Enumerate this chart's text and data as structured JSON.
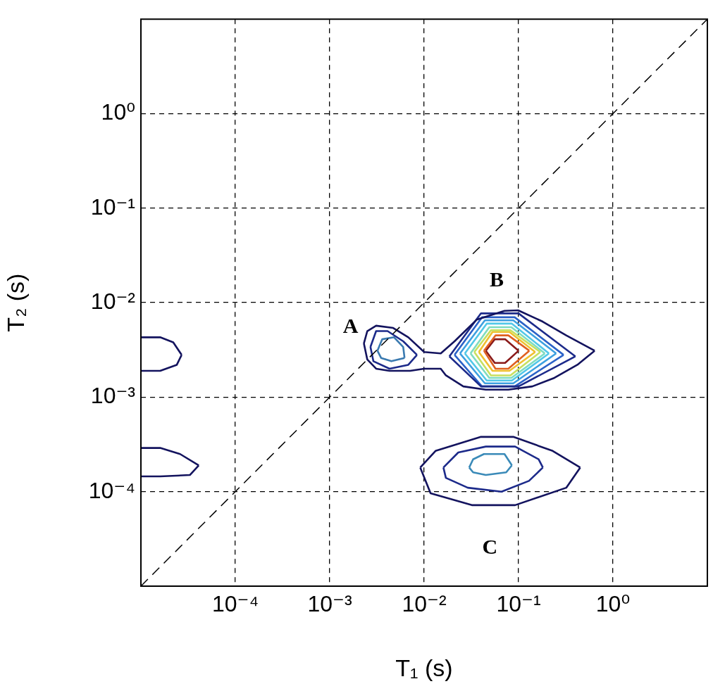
{
  "chart_data": {
    "type": "line",
    "xlabel": "T₁ (s)",
    "ylabel": "T₂ (s)",
    "log": "xy",
    "grid": true,
    "legend": false,
    "marker": "none",
    "xlim": [
      1e-05,
      10
    ],
    "ylim": [
      1e-05,
      10
    ],
    "xticks": [
      {
        "value": 0.0001,
        "label": "10⁻⁴"
      },
      {
        "value": 0.001,
        "label": "10⁻³"
      },
      {
        "value": 0.01,
        "label": "10⁻²"
      },
      {
        "value": 0.1,
        "label": "10⁻¹"
      },
      {
        "value": 1,
        "label": "10⁰"
      }
    ],
    "yticks": [
      {
        "value": 0.0001,
        "label": "10⁻⁴"
      },
      {
        "value": 0.001,
        "label": "10⁻³"
      },
      {
        "value": 0.01,
        "label": "10⁻²"
      },
      {
        "value": 0.1,
        "label": "10⁻¹"
      },
      {
        "value": 1,
        "label": "10⁰"
      }
    ],
    "annotations": [
      "A",
      "B",
      "C"
    ],
    "series": [
      {
        "color": "#000000",
        "line_style": "dashed",
        "x": [
          1e-05,
          10
        ],
        "values": [
          1e-05,
          10
        ]
      },
      {
        "color": "#13135e",
        "x": [
          0.0023,
          0.0025,
          0.0031,
          0.0047,
          0.0068,
          0.01,
          0.015,
          0.021,
          0.036,
          0.071,
          0.099,
          0.18,
          0.32,
          0.64
        ],
        "values": [
          0.0037,
          0.005,
          0.0057,
          0.0054,
          0.0043,
          0.003,
          0.0029,
          0.0039,
          0.0066,
          0.0082,
          0.0083,
          0.0063,
          0.0045,
          0.0031
        ]
      },
      {
        "color": "#13135e",
        "x": [
          0.0023,
          0.0025,
          0.0031,
          0.0043,
          0.0071,
          0.01,
          0.015,
          0.017,
          0.026,
          0.045,
          0.078,
          0.14,
          0.24,
          0.42,
          0.64
        ],
        "values": [
          0.0037,
          0.0025,
          0.002,
          0.0019,
          0.0019,
          0.002,
          0.002,
          0.0017,
          0.0013,
          0.0012,
          0.0012,
          0.0013,
          0.0016,
          0.0022,
          0.0031
        ]
      },
      {
        "color": "#1c2a8a",
        "x": [
          0.0185,
          0.04,
          0.1,
          0.4
        ],
        "values": [
          0.0027,
          0.0077,
          0.0077,
          0.0027
        ]
      },
      {
        "color": "#1c2a8a",
        "x": [
          0.0185,
          0.04,
          0.1,
          0.4
        ],
        "values": [
          0.0027,
          0.0013,
          0.0013,
          0.0027
        ]
      },
      {
        "color": "#2b62c8",
        "x": [
          0.021,
          0.041,
          0.091,
          0.3
        ],
        "values": [
          0.0028,
          0.007,
          0.007,
          0.0028
        ]
      },
      {
        "color": "#2b62c8",
        "x": [
          0.021,
          0.041,
          0.091,
          0.3
        ],
        "values": [
          0.0028,
          0.0013,
          0.0013,
          0.0028
        ]
      },
      {
        "color": "#3da0e0",
        "x": [
          0.024,
          0.044,
          0.088,
          0.25
        ],
        "values": [
          0.0029,
          0.0065,
          0.0065,
          0.0029
        ]
      },
      {
        "color": "#3da0e0",
        "x": [
          0.024,
          0.044,
          0.088,
          0.25
        ],
        "values": [
          0.0029,
          0.0014,
          0.0014,
          0.0029
        ]
      },
      {
        "color": "#52c8e8",
        "x": [
          0.027,
          0.046,
          0.085,
          0.21
        ],
        "values": [
          0.0029,
          0.006,
          0.006,
          0.0029
        ]
      },
      {
        "color": "#52c8e8",
        "x": [
          0.027,
          0.046,
          0.085,
          0.21
        ],
        "values": [
          0.0029,
          0.0015,
          0.0015,
          0.0029
        ]
      },
      {
        "color": "#7fdcc0",
        "x": [
          0.031,
          0.049,
          0.084,
          0.19
        ],
        "values": [
          0.0029,
          0.0055,
          0.0055,
          0.0029
        ]
      },
      {
        "color": "#7fdcc0",
        "x": [
          0.031,
          0.049,
          0.084,
          0.19
        ],
        "values": [
          0.0029,
          0.0016,
          0.0016,
          0.0029
        ]
      },
      {
        "color": "#c8e060",
        "x": [
          0.034,
          0.051,
          0.082,
          0.17
        ],
        "values": [
          0.003,
          0.0051,
          0.0051,
          0.003
        ]
      },
      {
        "color": "#c8e060",
        "x": [
          0.034,
          0.051,
          0.082,
          0.17
        ],
        "values": [
          0.003,
          0.0017,
          0.0017,
          0.003
        ]
      },
      {
        "color": "#f0c030",
        "x": [
          0.038,
          0.053,
          0.08,
          0.15
        ],
        "values": [
          0.003,
          0.0049,
          0.0049,
          0.003
        ]
      },
      {
        "color": "#f0c030",
        "x": [
          0.038,
          0.053,
          0.08,
          0.15
        ],
        "values": [
          0.003,
          0.0019,
          0.0019,
          0.003
        ]
      },
      {
        "color": "#e06020",
        "x": [
          0.043,
          0.057,
          0.078,
          0.13
        ],
        "values": [
          0.0031,
          0.0045,
          0.0045,
          0.0031
        ]
      },
      {
        "color": "#e06020",
        "x": [
          0.043,
          0.057,
          0.078,
          0.13
        ],
        "values": [
          0.0031,
          0.002,
          0.002,
          0.0031
        ]
      },
      {
        "color": "#8a1a1a",
        "x": [
          0.045,
          0.056,
          0.072,
          0.1
        ],
        "values": [
          0.0031,
          0.0041,
          0.0041,
          0.0031
        ]
      },
      {
        "color": "#8a1a1a",
        "x": [
          0.045,
          0.056,
          0.072,
          0.1
        ],
        "values": [
          0.0031,
          0.0023,
          0.0023,
          0.0031
        ]
      },
      {
        "color": "#1c2a8a",
        "x": [
          0.0027,
          0.0031,
          0.0041,
          0.006,
          0.0084
        ],
        "values": [
          0.0034,
          0.005,
          0.005,
          0.0039,
          0.0028
        ]
      },
      {
        "color": "#1c2a8a",
        "x": [
          0.0027,
          0.0029,
          0.0043,
          0.0068,
          0.0084
        ],
        "values": [
          0.0034,
          0.0024,
          0.002,
          0.0022,
          0.0028
        ]
      },
      {
        "color": "#3a7ab0",
        "x": [
          0.0032,
          0.0036,
          0.0048,
          0.006,
          0.0062
        ],
        "values": [
          0.0031,
          0.0041,
          0.0043,
          0.0034,
          0.0026
        ]
      },
      {
        "color": "#3a7ab0",
        "x": [
          0.0032,
          0.0035,
          0.0045,
          0.0062
        ],
        "values": [
          0.0031,
          0.0026,
          0.0024,
          0.0026
        ]
      },
      {
        "color": "#13135e",
        "x": [
          0.0091,
          0.0132,
          0.04,
          0.088,
          0.23,
          0.45
        ],
        "values": [
          0.00018,
          0.00027,
          0.00038,
          0.00038,
          0.00027,
          0.00018
        ]
      },
      {
        "color": "#13135e",
        "x": [
          0.0091,
          0.0117,
          0.032,
          0.092,
          0.32,
          0.45
        ],
        "values": [
          0.00018,
          9.6e-05,
          7.2e-05,
          7.2e-05,
          0.00011,
          0.00018
        ]
      },
      {
        "color": "#1c2a8a",
        "x": [
          0.016,
          0.023,
          0.045,
          0.092,
          0.163,
          0.181
        ],
        "values": [
          0.00018,
          0.00026,
          0.0003,
          0.0003,
          0.00022,
          0.00018
        ]
      },
      {
        "color": "#1c2a8a",
        "x": [
          0.016,
          0.017,
          0.029,
          0.066,
          0.129,
          0.181
        ],
        "values": [
          0.00018,
          0.00014,
          0.00011,
          0.0001,
          0.00013,
          0.00018
        ]
      },
      {
        "color": "#3a8ab8",
        "x": [
          0.03,
          0.033,
          0.043,
          0.071,
          0.085
        ],
        "values": [
          0.00018,
          0.00022,
          0.00025,
          0.00025,
          0.00019
        ]
      },
      {
        "color": "#3a8ab8",
        "x": [
          0.03,
          0.033,
          0.045,
          0.074,
          0.085
        ],
        "values": [
          0.00018,
          0.00016,
          0.00015,
          0.00016,
          0.00019
        ]
      },
      {
        "color": "#13135e",
        "x": [
          1e-05,
          1.6e-05,
          2.2e-05,
          2.7e-05
        ],
        "values": [
          0.0043,
          0.0043,
          0.0038,
          0.0028
        ]
      },
      {
        "color": "#13135e",
        "x": [
          1e-05,
          1.6e-05,
          2.4e-05,
          2.7e-05
        ],
        "values": [
          0.0019,
          0.0019,
          0.0022,
          0.0028
        ]
      },
      {
        "color": "#13135e",
        "x": [
          1e-05,
          1.6e-05,
          2.6e-05,
          4.1e-05
        ],
        "values": [
          0.00029,
          0.00029,
          0.00025,
          0.00019
        ]
      },
      {
        "color": "#13135e",
        "x": [
          1e-05,
          1.6e-05,
          3.3e-05,
          4.1e-05
        ],
        "values": [
          0.000145,
          0.000145,
          0.00015,
          0.00019
        ]
      }
    ]
  }
}
